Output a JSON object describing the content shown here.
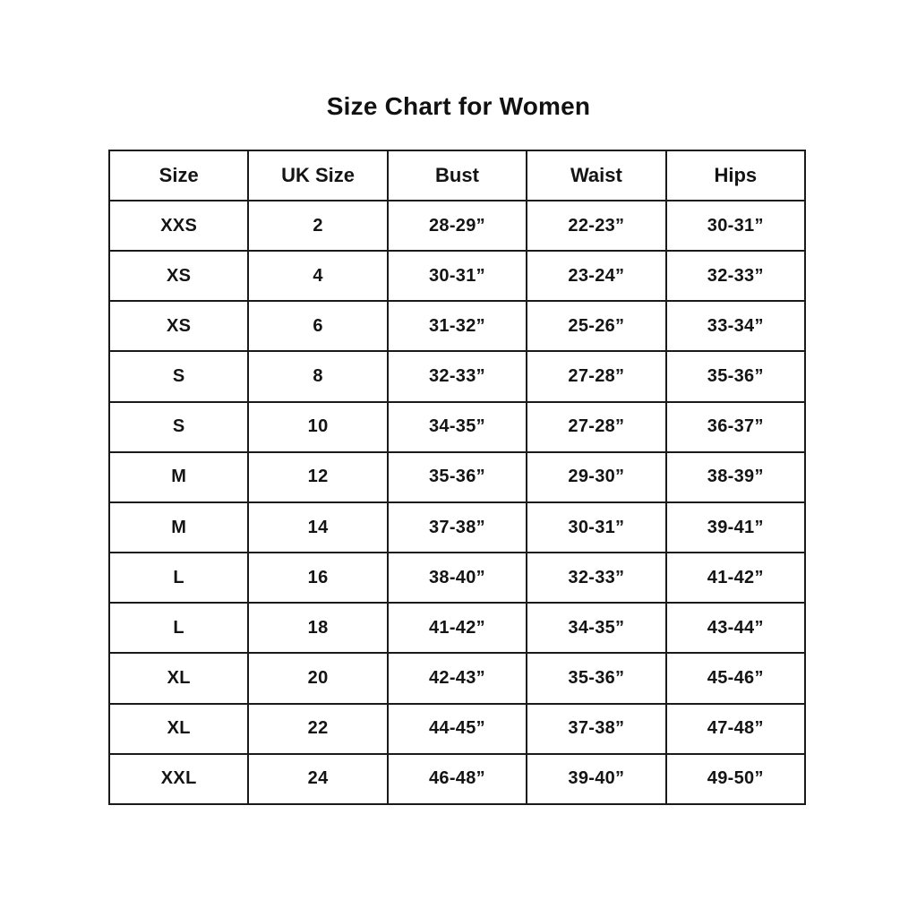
{
  "page": {
    "title": "Size Chart for Women"
  },
  "table": {
    "headers": [
      "Size",
      "UK Size",
      "Bust",
      "Waist",
      "Hips"
    ],
    "rows": [
      [
        "XXS",
        "2",
        "28-29”",
        "22-23”",
        "30-31”"
      ],
      [
        "XS",
        "4",
        "30-31”",
        "23-24”",
        "32-33”"
      ],
      [
        "XS",
        "6",
        "31-32”",
        "25-26”",
        "33-34”"
      ],
      [
        "S",
        "8",
        "32-33”",
        "27-28”",
        "35-36”"
      ],
      [
        "S",
        "10",
        "34-35”",
        "27-28”",
        "36-37”"
      ],
      [
        "M",
        "12",
        "35-36”",
        "29-30”",
        "38-39”"
      ],
      [
        "M",
        "14",
        "37-38”",
        "30-31”",
        "39-41”"
      ],
      [
        "L",
        "16",
        "38-40”",
        "32-33”",
        "41-42”"
      ],
      [
        "L",
        "18",
        "41-42”",
        "34-35”",
        "43-44”"
      ],
      [
        "XL",
        "20",
        "42-43”",
        "35-36”",
        "45-46”"
      ],
      [
        "XL",
        "22",
        "44-45”",
        "37-38”",
        "47-48”"
      ],
      [
        "XXL",
        "24",
        "46-48”",
        "39-40”",
        "49-50”"
      ]
    ]
  },
  "chart_data": {
    "type": "table",
    "title": "Size Chart for Women",
    "columns": [
      "Size",
      "UK Size",
      "Bust",
      "Waist",
      "Hips"
    ],
    "rows": [
      [
        "XXS",
        "2",
        "28-29”",
        "22-23”",
        "30-31”"
      ],
      [
        "XS",
        "4",
        "30-31”",
        "23-24”",
        "32-33”"
      ],
      [
        "XS",
        "6",
        "31-32”",
        "25-26”",
        "33-34”"
      ],
      [
        "S",
        "8",
        "32-33”",
        "27-28”",
        "35-36”"
      ],
      [
        "S",
        "10",
        "34-35”",
        "27-28”",
        "36-37”"
      ],
      [
        "M",
        "12",
        "35-36”",
        "29-30”",
        "38-39”"
      ],
      [
        "M",
        "14",
        "37-38”",
        "30-31”",
        "39-41”"
      ],
      [
        "L",
        "16",
        "38-40”",
        "32-33”",
        "41-42”"
      ],
      [
        "L",
        "18",
        "41-42”",
        "34-35”",
        "43-44”"
      ],
      [
        "XL",
        "20",
        "42-43”",
        "35-36”",
        "45-46”"
      ],
      [
        "XL",
        "22",
        "44-45”",
        "37-38”",
        "47-48”"
      ],
      [
        "XXL",
        "24",
        "46-48”",
        "39-40”",
        "49-50”"
      ]
    ]
  },
  "colors": {
    "background": "#ffffff",
    "text": "#141414",
    "border": "#1a1a1a"
  }
}
